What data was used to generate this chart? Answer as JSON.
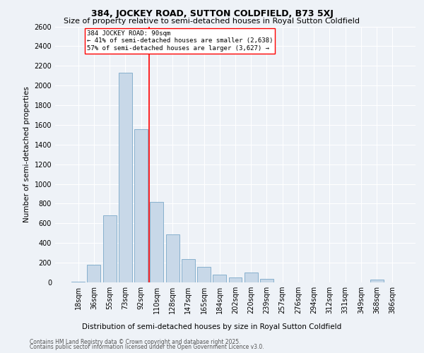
{
  "title": "384, JOCKEY ROAD, SUTTON COLDFIELD, B73 5XJ",
  "subtitle": "Size of property relative to semi-detached houses in Royal Sutton Coldfield",
  "xlabel_bottom": "Distribution of semi-detached houses by size in Royal Sutton Coldfield",
  "ylabel": "Number of semi-detached properties",
  "footer_line1": "Contains HM Land Registry data © Crown copyright and database right 2025.",
  "footer_line2": "Contains public sector information licensed under the Open Government Licence v3.0.",
  "categories": [
    "18sqm",
    "36sqm",
    "55sqm",
    "73sqm",
    "92sqm",
    "110sqm",
    "128sqm",
    "147sqm",
    "165sqm",
    "184sqm",
    "202sqm",
    "220sqm",
    "239sqm",
    "257sqm",
    "276sqm",
    "294sqm",
    "312sqm",
    "331sqm",
    "349sqm",
    "368sqm",
    "386sqm"
  ],
  "values": [
    10,
    180,
    680,
    2130,
    1560,
    820,
    490,
    235,
    160,
    80,
    50,
    100,
    35,
    0,
    0,
    0,
    0,
    0,
    0,
    30,
    0
  ],
  "bar_color": "#c8d8e8",
  "bar_edge_color": "#7aa8c8",
  "red_line_index": 4,
  "red_line_label": "384 JOCKEY ROAD: 90sqm",
  "annotation_smaller": "← 41% of semi-detached houses are smaller (2,638)",
  "annotation_larger": "57% of semi-detached houses are larger (3,627) →",
  "annotation_box_color": "white",
  "annotation_box_edge": "red",
  "ylim": [
    0,
    2600
  ],
  "yticks": [
    0,
    200,
    400,
    600,
    800,
    1000,
    1200,
    1400,
    1600,
    1800,
    2000,
    2200,
    2400,
    2600
  ],
  "background_color": "#eef2f7",
  "grid_color": "white",
  "title_fontsize": 9,
  "subtitle_fontsize": 8,
  "axis_label_fontsize": 7.5,
  "tick_fontsize": 7,
  "footer_fontsize": 5.5
}
